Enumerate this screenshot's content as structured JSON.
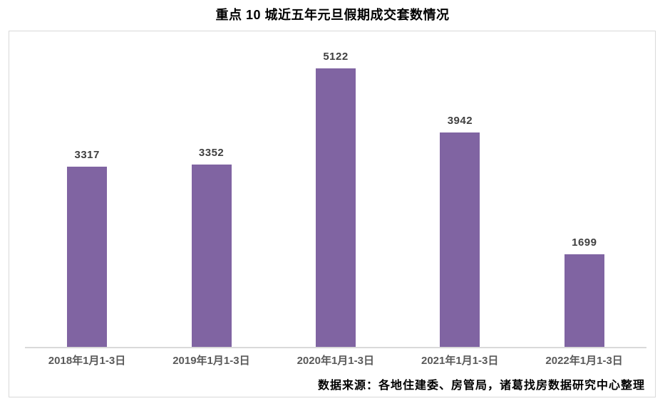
{
  "title": "重点 10 城近五年元旦假期成交套数情况",
  "source_note": "数据来源：各地住建委、房管局，诸葛找房数据研究中心整理",
  "colors": {
    "bar": "#8064a2",
    "frame_border": "#d9d9d9",
    "axis_line": "#d9d9d9",
    "value_label": "#404040",
    "axis_label": "#595959",
    "title_text": "#000000"
  },
  "chart_data": {
    "type": "bar",
    "title": "重点 10 城近五年元旦假期成交套数情况",
    "categories": [
      "2018年1月1-3日",
      "2019年1月1-3日",
      "2020年1月1-3日",
      "2021年1月1-3日",
      "2022年1月1-3日"
    ],
    "values": [
      3317,
      3352,
      5122,
      3942,
      1699
    ],
    "data_labels": [
      3317,
      3352,
      5122,
      3942,
      1699
    ],
    "xlabel": "",
    "ylabel": "",
    "ylim": [
      0,
      5700
    ],
    "grid": false,
    "legend": false,
    "annotations": [
      "数据来源：各地住建委、房管局，诸葛找房数据研究中心整理"
    ]
  }
}
